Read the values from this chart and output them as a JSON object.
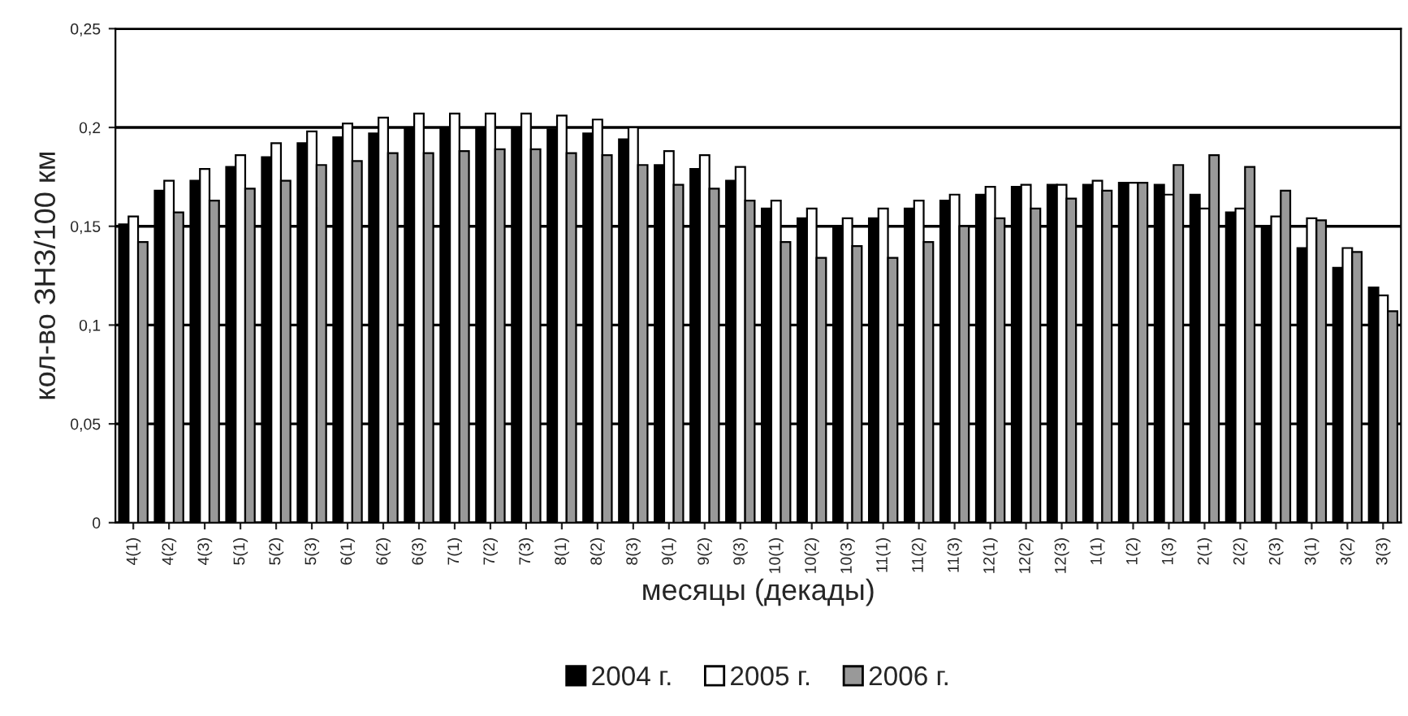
{
  "chart_data": {
    "type": "bar",
    "xlabel": "месяцы (декады)",
    "ylabel": "кол-во ЗНЗ/100 км",
    "categories": [
      "4(1)",
      "4(2)",
      "4(3)",
      "5(1)",
      "5(2)",
      "5(3)",
      "6(1)",
      "6(2)",
      "6(3)",
      "7(1)",
      "7(2)",
      "7(3)",
      "8(1)",
      "8(2)",
      "8(3)",
      "9(1)",
      "9(2)",
      "9(3)",
      "10(1)",
      "10(2)",
      "10(3)",
      "11(1)",
      "11(2)",
      "11(3)",
      "12(1)",
      "12(2)",
      "12(3)",
      "1(1)",
      "1(2)",
      "1(3)",
      "2(1)",
      "2(2)",
      "2(3)",
      "3(1)",
      "3(2)",
      "3(3)"
    ],
    "series": [
      {
        "name": "2004 г.",
        "color": "#000000",
        "values": [
          0.151,
          0.168,
          0.173,
          0.18,
          0.185,
          0.192,
          0.195,
          0.197,
          0.2,
          0.2,
          0.2,
          0.2,
          0.199,
          0.197,
          0.194,
          0.181,
          0.179,
          0.173,
          0.159,
          0.154,
          0.15,
          0.154,
          0.159,
          0.163,
          0.166,
          0.17,
          0.171,
          0.171,
          0.172,
          0.171,
          0.166,
          0.157,
          0.15,
          0.139,
          0.129,
          0.119
        ]
      },
      {
        "name": "2005 г.",
        "color": "#ffffff",
        "values": [
          0.155,
          0.173,
          0.179,
          0.186,
          0.192,
          0.198,
          0.202,
          0.205,
          0.207,
          0.207,
          0.207,
          0.207,
          0.206,
          0.204,
          0.2,
          0.188,
          0.186,
          0.18,
          0.163,
          0.159,
          0.154,
          0.159,
          0.163,
          0.166,
          0.17,
          0.171,
          0.171,
          0.173,
          0.172,
          0.166,
          0.159,
          0.159,
          0.155,
          0.154,
          0.139,
          0.115
        ]
      },
      {
        "name": "2006 г.",
        "color": "#999999",
        "values": [
          0.142,
          0.157,
          0.163,
          0.169,
          0.173,
          0.181,
          0.183,
          0.187,
          0.187,
          0.188,
          0.189,
          0.189,
          0.187,
          0.186,
          0.181,
          0.171,
          0.169,
          0.163,
          0.142,
          0.134,
          0.14,
          0.134,
          0.142,
          0.15,
          0.154,
          0.159,
          0.164,
          0.168,
          0.172,
          0.181,
          0.186,
          0.18,
          0.168,
          0.153,
          0.137,
          0.107
        ]
      }
    ],
    "ylim": [
      0,
      0.25
    ],
    "yticks": [
      {
        "value": 0,
        "label": "0"
      },
      {
        "value": 0.05,
        "label": "0,05"
      },
      {
        "value": 0.1,
        "label": "0,1"
      },
      {
        "value": 0.15,
        "label": "0,15"
      },
      {
        "value": 0.2,
        "label": "0,2"
      },
      {
        "value": 0.25,
        "label": "0,25"
      }
    ],
    "grid": "y",
    "legend": "bottom"
  }
}
